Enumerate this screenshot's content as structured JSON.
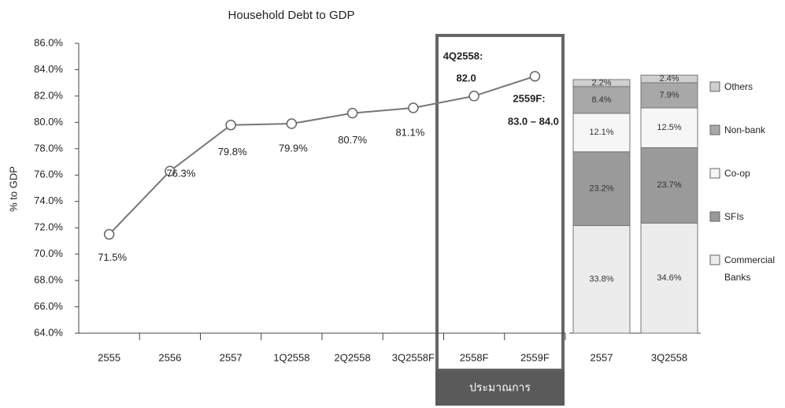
{
  "chart_data": [
    {
      "type": "line",
      "title": "Household Debt to GDP",
      "y_label": "% to GDP",
      "categories": [
        "2555",
        "2556",
        "2557",
        "1Q2558",
        "2Q2558",
        "3Q2558F",
        "2558F",
        "2559F"
      ],
      "values": [
        71.5,
        76.3,
        79.8,
        79.9,
        80.7,
        81.1,
        82.0,
        83.5
      ],
      "value_labels": [
        "71.5%",
        "76.3%",
        "79.8%",
        "79.9%",
        "80.7%",
        "81.1%",
        "82.0",
        "83.0 – 84.0"
      ],
      "annotations": [
        "4Q2558:",
        "2559F:"
      ],
      "highlight_label": "ประมาณการ",
      "color": "#777777",
      "ylim": [
        64,
        86
      ],
      "yticks": [
        {
          "value": 64,
          "label": "64.0%"
        },
        {
          "value": 66,
          "label": "66.0%"
        },
        {
          "value": 68,
          "label": "68.0%"
        },
        {
          "value": 70,
          "label": "70.0%"
        },
        {
          "value": 72,
          "label": "72.0%"
        },
        {
          "value": 74,
          "label": "74.0%"
        },
        {
          "value": 76,
          "label": "76.0%"
        },
        {
          "value": 78,
          "label": "78.0%"
        },
        {
          "value": 80,
          "label": "80.0%"
        },
        {
          "value": 82,
          "label": "82.0%"
        },
        {
          "value": 84,
          "label": "84.0%"
        },
        {
          "value": 86,
          "label": "86.0%"
        }
      ]
    },
    {
      "type": "stacked_bar",
      "categories": [
        "2557",
        "3Q2558"
      ],
      "series": [
        {
          "name": "Commercial Banks",
          "color": "#ececec",
          "values": [
            33.8,
            34.6
          ],
          "value_labels": [
            "33.8%",
            "34.6%"
          ]
        },
        {
          "name": "SFIs",
          "color": "#9a9a9a",
          "values": [
            23.2,
            23.7
          ],
          "value_labels": [
            "23.2%",
            "23.7%"
          ]
        },
        {
          "name": "Co-op",
          "color": "#f6f6f6",
          "values": [
            12.1,
            12.5
          ],
          "value_labels": [
            "12.1%",
            "12.5%"
          ]
        },
        {
          "name": "Non-bank",
          "color": "#a8a8a8",
          "values": [
            8.4,
            7.9
          ],
          "value_labels": [
            "8.4%",
            "7.9%"
          ]
        },
        {
          "name": "Others",
          "color": "#cfcfcf",
          "values": [
            2.2,
            2.4
          ],
          "value_labels": [
            "2.2%",
            "2.4%"
          ]
        }
      ]
    }
  ]
}
